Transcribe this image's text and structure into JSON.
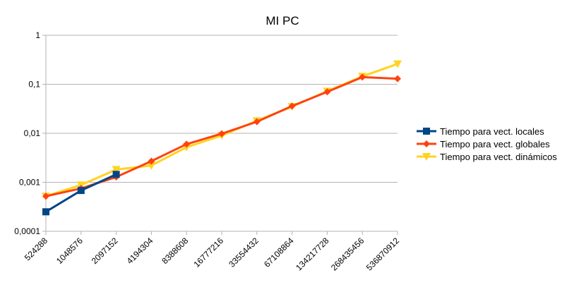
{
  "chart_data": {
    "type": "line",
    "title": "MI PC",
    "xlabel": "",
    "ylabel": "",
    "y_scale": "log",
    "ylim": [
      0.0001,
      1
    ],
    "y_ticks": [
      "1",
      "0,1",
      "0,01",
      "0,001",
      "0,0001"
    ],
    "categories": [
      "524288",
      "1048576",
      "2097152",
      "4194304",
      "8388608",
      "16777216",
      "33554432",
      "67108864",
      "134217728",
      "268435456",
      "536870912"
    ],
    "grid": "horizontal",
    "legend_position": "right",
    "series": [
      {
        "name": "Tiempo para vect. locales",
        "color": "#004586",
        "marker": "square",
        "values": [
          0.00025,
          0.00068,
          0.00145,
          null,
          null,
          null,
          null,
          null,
          null,
          null,
          null
        ]
      },
      {
        "name": "Tiempo para vect. globales",
        "color": "#ff420e",
        "marker": "diamond",
        "values": [
          0.00052,
          0.00075,
          0.00128,
          0.0027,
          0.006,
          0.0098,
          0.0172,
          0.036,
          0.07,
          0.14,
          0.13
        ]
      },
      {
        "name": "Tiempo para vect. dinámicos",
        "color": "#ffd320",
        "marker": "triangle-down",
        "values": [
          0.00052,
          0.00088,
          0.00182,
          0.0022,
          0.0052,
          0.009,
          0.018,
          0.035,
          0.072,
          0.145,
          0.26
        ]
      }
    ]
  }
}
